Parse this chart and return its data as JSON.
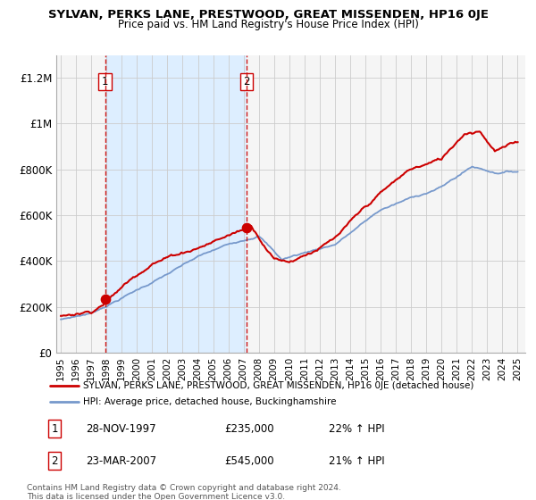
{
  "title": "SYLVAN, PERKS LANE, PRESTWOOD, GREAT MISSENDEN, HP16 0JE",
  "subtitle": "Price paid vs. HM Land Registry's House Price Index (HPI)",
  "ylim": [
    0,
    1300000
  ],
  "yticks": [
    0,
    200000,
    400000,
    600000,
    800000,
    1000000,
    1200000
  ],
  "ytick_labels": [
    "£0",
    "£200K",
    "£400K",
    "£600K",
    "£800K",
    "£1M",
    "£1.2M"
  ],
  "x_start_year": 1995,
  "x_end_year": 2025,
  "purchase_points": [
    {
      "year": 1997.9,
      "price": 235000,
      "label": "1"
    },
    {
      "year": 2007.2,
      "price": 545000,
      "label": "2"
    }
  ],
  "shaded_region_color": "#ddeeff",
  "legend_entries": [
    {
      "label": "SYLVAN, PERKS LANE, PRESTWOOD, GREAT MISSENDEN, HP16 0JE (detached house)",
      "color": "#cc0000",
      "lw": 2
    },
    {
      "label": "HPI: Average price, detached house, Buckinghamshire",
      "color": "#7799cc",
      "lw": 2
    }
  ],
  "table_rows": [
    {
      "num": "1",
      "date": "28-NOV-1997",
      "price": "£235,000",
      "change": "22% ↑ HPI"
    },
    {
      "num": "2",
      "date": "23-MAR-2007",
      "price": "£545,000",
      "change": "21% ↑ HPI"
    }
  ],
  "footer": "Contains HM Land Registry data © Crown copyright and database right 2024.\nThis data is licensed under the Open Government Licence v3.0.",
  "background_color": "#ffffff",
  "plot_bg_color": "#f5f5f5",
  "grid_color": "#cccccc",
  "red_line_color": "#cc0000",
  "blue_line_color": "#7799cc",
  "dashed_line_color": "#cc0000"
}
